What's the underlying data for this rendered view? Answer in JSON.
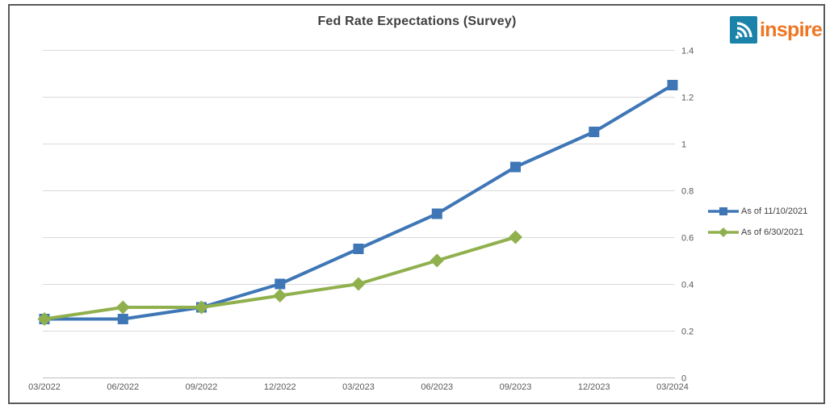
{
  "frame": {
    "border_color": "#58595b",
    "background": "#ffffff"
  },
  "logo": {
    "text": "inspire",
    "text_color": "#ee7623",
    "icon": "inspire-arcs-icon",
    "icon_bg_color": "#1b83a9",
    "icon_fg_color": "#ffffff"
  },
  "chart_data": {
    "type": "line",
    "title": "Fed Rate Expectations (Survey)",
    "xlabel": "",
    "ylabel": "",
    "categories": [
      "03/2022",
      "06/2022",
      "09/2022",
      "12/2022",
      "03/2023",
      "06/2023",
      "09/2023",
      "12/2023",
      "03/2024"
    ],
    "series": [
      {
        "name": "As of 11/10/2021",
        "color": "#3e76b6",
        "marker": "square",
        "values": [
          0.25,
          0.25,
          0.3,
          0.4,
          0.55,
          0.7,
          0.9,
          1.05,
          1.25
        ]
      },
      {
        "name": "As of 6/30/2021",
        "color": "#90b04d",
        "marker": "diamond",
        "values": [
          0.25,
          0.3,
          0.3,
          0.35,
          0.4,
          0.5,
          0.6,
          null,
          null
        ]
      }
    ],
    "ylim": [
      0,
      1.4
    ],
    "y_ticks": {
      "values": [
        0,
        0.2,
        0.4,
        0.6,
        0.8,
        1,
        1.2,
        1.4
      ],
      "labels": [
        "0",
        "0.2",
        "0.4",
        "0.6",
        "0.8",
        "1",
        "1.2",
        "1.4"
      ]
    },
    "axis_side": "right",
    "grid": true,
    "gridline_color": "#d9d9d9",
    "axis_line_color": "#bfbfbf",
    "tick_label_color": "#595959",
    "legend_position": "right"
  }
}
